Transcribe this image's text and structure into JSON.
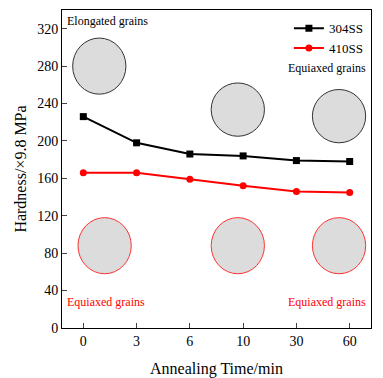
{
  "chart_data": {
    "type": "line",
    "x_label": "Annealing Time/min",
    "y_label": "Hardness/×9.8 MPa",
    "categories": [
      "0",
      "3",
      "6",
      "10",
      "30",
      "60"
    ],
    "series": [
      {
        "name": "304SS",
        "color": "#000000",
        "marker": "square",
        "values": [
          226,
          198,
          186,
          184,
          179,
          178
        ]
      },
      {
        "name": "410SS",
        "color": "#ff0000",
        "marker": "circle",
        "values": [
          166,
          166,
          159,
          152,
          146,
          145
        ]
      }
    ],
    "annotations": [
      {
        "text": "Elongated grains",
        "color": "#000000"
      },
      {
        "text": "Equiaxed grains",
        "color": "#000000"
      },
      {
        "text": "Equiaxed grains",
        "color": "#ff0000"
      },
      {
        "text": "Equiaxed grains",
        "color": "#ff0000"
      }
    ],
    "ylim": [
      0,
      340
    ],
    "yticks": [
      0,
      40,
      80,
      120,
      160,
      200,
      240,
      280,
      320
    ],
    "grid": false,
    "legend": "top right"
  }
}
